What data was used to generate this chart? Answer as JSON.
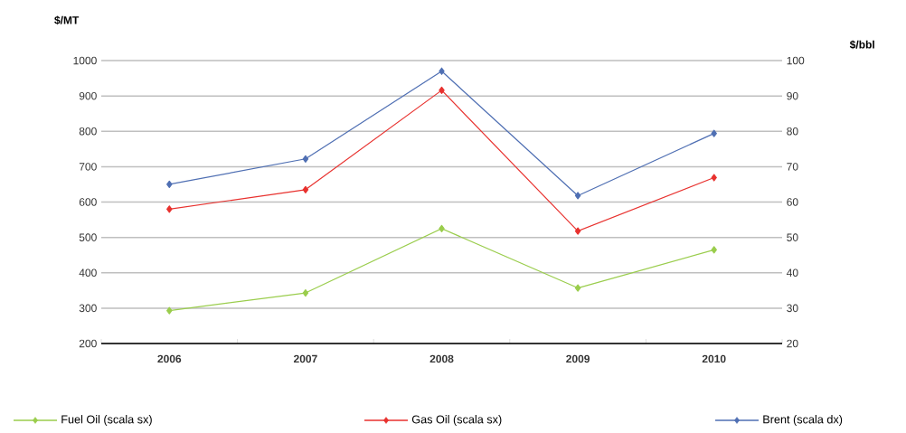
{
  "chart_data": {
    "type": "line",
    "ylabel": "$/MT",
    "y2label": "$/bbl",
    "categories": [
      "2006",
      "2007",
      "2008",
      "2009",
      "2010"
    ],
    "series": [
      {
        "name": "Fuel Oil (scala sx)",
        "color": "#9acd4c",
        "values": [
          293,
          343,
          525,
          357,
          465
        ]
      },
      {
        "name": "Gas Oil (scala sx)",
        "color": "#e8312e",
        "values": [
          580,
          635,
          916,
          518,
          669
        ]
      },
      {
        "name": "Brent (scala dx)",
        "color": "#4f6fb3",
        "axis": "y2",
        "values": [
          65,
          72.2,
          97,
          61.8,
          79.4
        ]
      }
    ],
    "ylim": [
      200,
      1000
    ],
    "yticks": [
      200,
      300,
      400,
      500,
      600,
      700,
      800,
      900,
      1000
    ],
    "y2lim": [
      20,
      100
    ],
    "y2ticks": [
      20,
      30,
      40,
      50,
      60,
      70,
      80,
      90,
      100
    ],
    "grid": "y",
    "legend": "bottom",
    "marker": "diamond",
    "line_style": "solid"
  }
}
